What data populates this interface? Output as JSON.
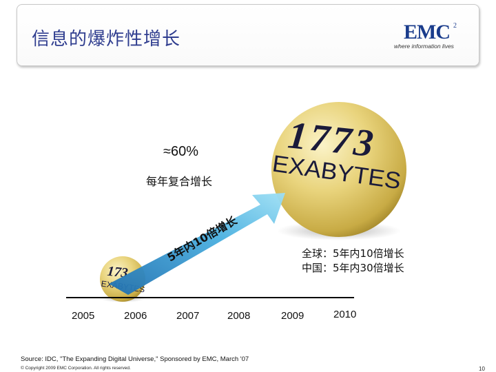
{
  "header": {
    "title": "信息的爆炸性增长",
    "logo_text": "EMC",
    "logo_superscript": "2",
    "logo_tagline": "where information lives"
  },
  "growth": {
    "rate": "≈60%",
    "rate_label": "每年复合增长",
    "arrow_text": "5年内10倍增长"
  },
  "bubbles": {
    "large": {
      "number": "1773",
      "unit": "EXABYTES"
    },
    "small": {
      "number": "173",
      "unit": "EXABYTES"
    }
  },
  "notes": {
    "global": "全球：5年内10倍增长",
    "china": "中国：5年内30倍增长"
  },
  "timeline": {
    "years": [
      "2005",
      "2006",
      "2007",
      "2008",
      "2009",
      "2010"
    ]
  },
  "footer": {
    "source": "Source: IDC, \"The Expanding Digital Universe,\" Sponsored by EMC, March '07",
    "copyright": "© Copyright 2009 EMC Corporation. All rights reserved.",
    "page_number": "10"
  },
  "colors": {
    "title": "#2f3d8f",
    "arrow_start": "#1f6fb0",
    "arrow_end": "#8fd8f2",
    "sphere_light": "#f7eaa8",
    "sphere_dark": "#a68a2a"
  }
}
